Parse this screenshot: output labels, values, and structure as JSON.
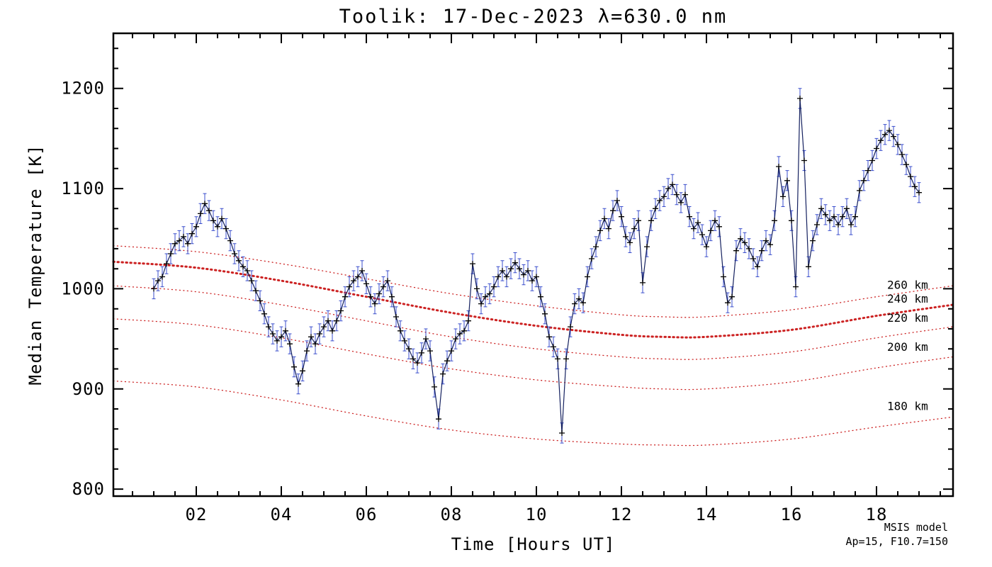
{
  "chart_data": {
    "type": "line",
    "title": "Toolik: 17-Dec-2023 λ=630.0 nm",
    "xlabel": "Time [Hours UT]",
    "ylabel": "Median Temperature [K]",
    "xlim": [
      0.05,
      19.8
    ],
    "ylim": [
      793,
      1255
    ],
    "grid": false,
    "x_major_ticks": [
      2,
      4,
      6,
      8,
      10,
      12,
      14,
      16,
      18
    ],
    "x_tick_labels": [
      "02",
      "04",
      "06",
      "08",
      "10",
      "12",
      "14",
      "16",
      "18"
    ],
    "x_minor_step": 0.5,
    "y_major_ticks": [
      800,
      900,
      1000,
      1100,
      1200
    ],
    "y_tick_labels": [
      "800",
      "900",
      "1000",
      "1100",
      "1200"
    ],
    "y_minor_step": 20,
    "series": {
      "name": "median-temperature",
      "marker": "plus",
      "marker_color": "#000000",
      "line_color": "#14205f",
      "errorbar_color": "#3a4ecc",
      "error_bar": 10,
      "x_start": 1.0,
      "x_step": 0.1,
      "y": [
        1000,
        1008,
        1012,
        1025,
        1035,
        1045,
        1048,
        1052,
        1045,
        1055,
        1062,
        1075,
        1085,
        1078,
        1068,
        1062,
        1070,
        1060,
        1048,
        1035,
        1028,
        1022,
        1018,
        1008,
        998,
        988,
        975,
        962,
        955,
        948,
        952,
        958,
        945,
        922,
        905,
        918,
        938,
        952,
        945,
        955,
        962,
        968,
        958,
        968,
        978,
        992,
        1002,
        1008,
        1012,
        1018,
        1005,
        992,
        985,
        995,
        1002,
        1008,
        992,
        972,
        958,
        948,
        940,
        930,
        926,
        936,
        950,
        938,
        902,
        870,
        915,
        928,
        938,
        950,
        955,
        958,
        968,
        1025,
        1000,
        985,
        992,
        995,
        1002,
        1012,
        1018,
        1012,
        1020,
        1026,
        1020,
        1014,
        1018,
        1008,
        1012,
        992,
        975,
        952,
        942,
        930,
        856,
        930,
        962,
        985,
        990,
        986,
        1012,
        1030,
        1042,
        1058,
        1070,
        1060,
        1078,
        1088,
        1072,
        1052,
        1046,
        1060,
        1068,
        1006,
        1042,
        1068,
        1080,
        1088,
        1092,
        1100,
        1104,
        1094,
        1086,
        1094,
        1072,
        1060,
        1066,
        1054,
        1042,
        1058,
        1068,
        1062,
        1012,
        986,
        992,
        1038,
        1050,
        1046,
        1040,
        1030,
        1022,
        1038,
        1048,
        1044,
        1068,
        1122,
        1092,
        1108,
        1068,
        1002,
        1190,
        1128,
        1022,
        1048,
        1064,
        1080,
        1074,
        1068,
        1072,
        1064,
        1072,
        1080,
        1064,
        1072,
        1098,
        1108,
        1118,
        1128,
        1140,
        1148,
        1154,
        1158,
        1152,
        1144,
        1134,
        1124,
        1112,
        1102,
        1096
      ]
    },
    "msis_model": {
      "color": "#cc2222",
      "x": [
        0.05,
        2,
        4,
        6,
        8,
        10,
        12,
        13,
        14,
        16,
        18,
        19.8
      ],
      "curves": [
        {
          "label": "260 km",
          "thick": false,
          "label_x": 18.25,
          "label_y": 1000,
          "y": [
            1043,
            1037,
            1025,
            1010,
            995,
            983,
            974,
            972,
            972,
            979,
            992,
            1003
          ]
        },
        {
          "label": "240 km",
          "thick": true,
          "label_x": 18.25,
          "label_y": 986,
          "y": [
            1027,
            1021,
            1008,
            992,
            976,
            963,
            954,
            952,
            952,
            959,
            973,
            984
          ]
        },
        {
          "label": "220 km",
          "thick": false,
          "label_x": 18.25,
          "label_y": 967,
          "y": [
            1003,
            997,
            984,
            968,
            952,
            940,
            932,
            930,
            930,
            937,
            951,
            962
          ]
        },
        {
          "label": "200 km",
          "thick": false,
          "label_x": 18.25,
          "label_y": 938,
          "y": [
            970,
            964,
            951,
            935,
            920,
            909,
            902,
            900,
            900,
            907,
            921,
            932
          ]
        },
        {
          "label": "180 km",
          "thick": false,
          "label_x": 18.25,
          "label_y": 879,
          "y": [
            908,
            902,
            889,
            873,
            859,
            850,
            845,
            844,
            844,
            850,
            862,
            872
          ]
        }
      ],
      "annotation_line1": "MSIS model",
      "annotation_line2": "Ap=15, F10.7=150"
    },
    "legend_position": "none",
    "frame_color": "#000000",
    "background_color": "#ffffff"
  }
}
